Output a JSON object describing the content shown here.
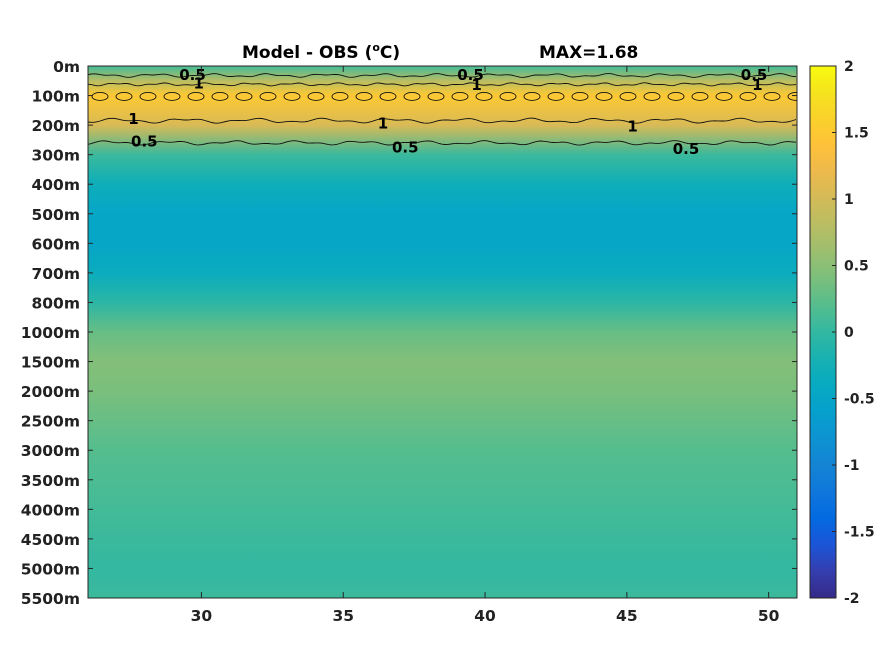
{
  "chart_data": {
    "type": "heatmap",
    "title_left": "Model - OBS (",
    "title_unit_sup": "o",
    "title_unit": "C)",
    "title_right": "MAX=1.68",
    "xlim": [
      26,
      51
    ],
    "x_ticks": [
      30,
      35,
      40,
      45,
      50
    ],
    "y_ticks": [
      "0m",
      "100m",
      "200m",
      "300m",
      "400m",
      "500m",
      "600m",
      "700m",
      "800m",
      "1000m",
      "1500m",
      "2000m",
      "2500m",
      "3000m",
      "3500m",
      "4000m",
      "4500m",
      "5000m",
      "5500m"
    ],
    "colorbar": {
      "range": [
        -2,
        2
      ],
      "ticks": [
        "2",
        "1.5",
        "1",
        "0.5",
        "0",
        "-0.5",
        "-1",
        "-1.5",
        "-2"
      ],
      "colormap": "parula"
    },
    "depth_profile": [
      {
        "depth": "0m",
        "value": 0.1
      },
      {
        "depth": "50m",
        "value": 0.8
      },
      {
        "depth": "100m",
        "value": 1.5
      },
      {
        "depth": "200m",
        "value": 1.05
      },
      {
        "depth": "300m",
        "value": 0.05
      },
      {
        "depth": "400m",
        "value": -0.3
      },
      {
        "depth": "500m",
        "value": -0.5
      },
      {
        "depth": "600m",
        "value": -0.5
      },
      {
        "depth": "700m",
        "value": -0.35
      },
      {
        "depth": "800m",
        "value": -0.05
      },
      {
        "depth": "1000m",
        "value": 0.3
      },
      {
        "depth": "1500m",
        "value": 0.45
      },
      {
        "depth": "2000m",
        "value": 0.4
      },
      {
        "depth": "2500m",
        "value": 0.3
      },
      {
        "depth": "3000m",
        "value": 0.2
      },
      {
        "depth": "3500m",
        "value": 0.15
      },
      {
        "depth": "4000m",
        "value": 0.1
      },
      {
        "depth": "4500m",
        "value": 0.05
      },
      {
        "depth": "5000m",
        "value": 0.0
      },
      {
        "depth": "5500m",
        "value": 0.05
      }
    ],
    "contour_labels": [
      {
        "text": "0.5",
        "x": 29.5,
        "depth_index": 0.3
      },
      {
        "text": "1",
        "x": 30.0,
        "depth_index": 0.6
      },
      {
        "text": "0.5",
        "x": 39.3,
        "depth_index": 0.3
      },
      {
        "text": "1",
        "x": 39.8,
        "depth_index": 0.65
      },
      {
        "text": "0.5",
        "x": 49.3,
        "depth_index": 0.3
      },
      {
        "text": "1",
        "x": 49.7,
        "depth_index": 0.65
      },
      {
        "text": "1",
        "x": 27.7,
        "depth_index": 1.8
      },
      {
        "text": "1",
        "x": 36.5,
        "depth_index": 1.95
      },
      {
        "text": "1",
        "x": 45.3,
        "depth_index": 2.05
      },
      {
        "text": "0.5",
        "x": 27.8,
        "depth_index": 2.55
      },
      {
        "text": "0.5",
        "x": 37.0,
        "depth_index": 2.75
      },
      {
        "text": "0.5",
        "x": 46.9,
        "depth_index": 2.8
      }
    ],
    "grid": false
  }
}
